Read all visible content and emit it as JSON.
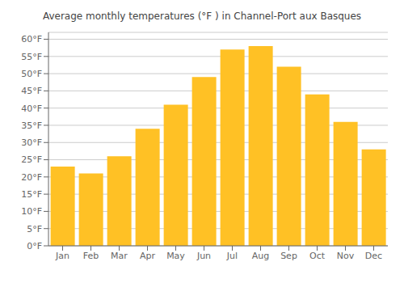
{
  "chart_data": {
    "type": "bar",
    "title": "Average monthly temperatures (°F ) in Channel-Port aux Basques",
    "categories": [
      "Jan",
      "Feb",
      "Mar",
      "Apr",
      "May",
      "Jun",
      "Jul",
      "Aug",
      "Sep",
      "Oct",
      "Nov",
      "Dec"
    ],
    "values": [
      23,
      21,
      26,
      34,
      41,
      49,
      57,
      58,
      52,
      44,
      36,
      28
    ],
    "color": "#FFC125",
    "ylim": [
      0,
      62
    ],
    "yticks": [
      {
        "value": 0,
        "label": "0°F"
      },
      {
        "value": 5,
        "label": "5°F"
      },
      {
        "value": 10,
        "label": "10°F"
      },
      {
        "value": 15,
        "label": "15°F"
      },
      {
        "value": 20,
        "label": "20°F"
      },
      {
        "value": 25,
        "label": "25°F"
      },
      {
        "value": 30,
        "label": "30°F"
      },
      {
        "value": 35,
        "label": "35°F"
      },
      {
        "value": 40,
        "label": "40°F"
      },
      {
        "value": 45,
        "label": "45°F"
      },
      {
        "value": 50,
        "label": "50°F"
      },
      {
        "value": 55,
        "label": "55°F"
      },
      {
        "value": 60,
        "label": "60°F"
      }
    ],
    "grid": true
  }
}
